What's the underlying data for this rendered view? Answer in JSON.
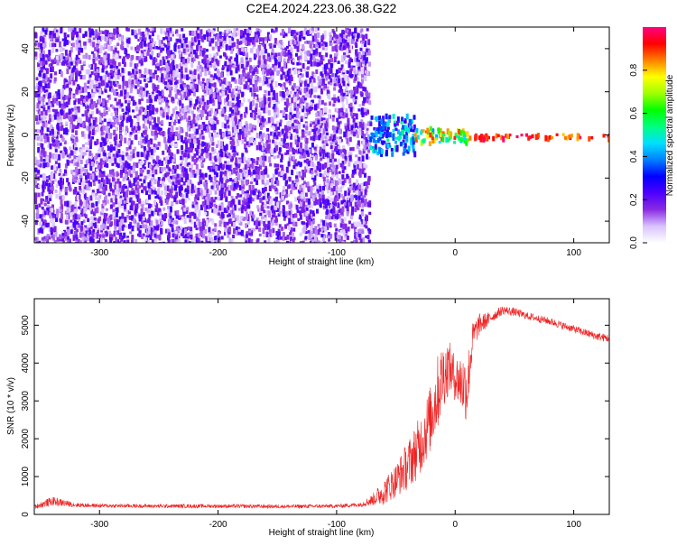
{
  "figure_title": "C2E4.2024.223.06.38.G22",
  "chart_data": [
    {
      "type": "heatmap",
      "xlabel": "Height of straight line (km)",
      "ylabel": "Frequency (Hz)",
      "xlim": [
        -355,
        130
      ],
      "ylim": [
        -50,
        50
      ],
      "xticks": [
        -300,
        -200,
        -100,
        0,
        100
      ],
      "yticks": [
        -40,
        -20,
        0,
        20,
        40
      ],
      "colorbar": {
        "label": "Normalized spectral amplitude",
        "range": [
          0,
          1
        ],
        "ticks": [
          0.0,
          0.2,
          0.4,
          0.6,
          0.8
        ],
        "colors": [
          "#ffffff",
          "#d9c2ff",
          "#8a2be2",
          "#4d00ff",
          "#0000ff",
          "#0080ff",
          "#00e0ff",
          "#00ff80",
          "#00ff00",
          "#a0ff00",
          "#ffff00",
          "#ff8000",
          "#ff0000",
          "#ff0080"
        ]
      },
      "regions": [
        {
          "x_range": [
            -355,
            -73
          ],
          "freq_range": [
            -50,
            50
          ],
          "amplitude": [
            0.05,
            0.25
          ],
          "description_type": "noise"
        },
        {
          "x_range": [
            -73,
            -35
          ],
          "freq_range": [
            -8,
            10
          ],
          "amplitude": [
            0.2,
            0.55
          ]
        },
        {
          "x_range": [
            -35,
            10
          ],
          "freq_range": [
            -3,
            4
          ],
          "amplitude": [
            0.4,
            0.9
          ]
        },
        {
          "x_range": [
            10,
            130
          ],
          "freq_range": [
            -1,
            1
          ],
          "amplitude": [
            0.8,
            1.0
          ]
        }
      ]
    },
    {
      "type": "line",
      "xlabel": "Height of straight line (km)",
      "ylabel": "SNR (10 * v/v)",
      "xlim": [
        -355,
        130
      ],
      "ylim": [
        0,
        5700
      ],
      "xticks": [
        -300,
        -200,
        -100,
        0,
        100
      ],
      "yticks": [
        0,
        1000,
        2000,
        3000,
        4000,
        5000
      ],
      "color": "#ee2222",
      "series": [
        {
          "x": [
            -355,
            -340,
            -320,
            -300,
            -250,
            -200,
            -150,
            -100,
            -80,
            -70,
            -60,
            -50,
            -40,
            -30,
            -20,
            -15,
            -10,
            -5,
            0,
            5,
            10,
            15,
            20,
            30,
            40,
            50,
            60,
            80,
            100,
            120,
            130
          ],
          "values": [
            200,
            350,
            250,
            230,
            220,
            220,
            210,
            220,
            260,
            380,
            600,
            900,
            1300,
            1800,
            2600,
            3200,
            3700,
            3900,
            3600,
            3500,
            3300,
            4700,
            5000,
            5200,
            5400,
            5350,
            5250,
            5100,
            4900,
            4700,
            4650
          ],
          "noise": [
            60,
            120,
            60,
            50,
            50,
            50,
            50,
            50,
            60,
            150,
            350,
            450,
            650,
            800,
            900,
            1000,
            900,
            700,
            600,
            800,
            900,
            400,
            300,
            150,
            120,
            110,
            100,
            100,
            100,
            110,
            110
          ]
        }
      ]
    }
  ]
}
